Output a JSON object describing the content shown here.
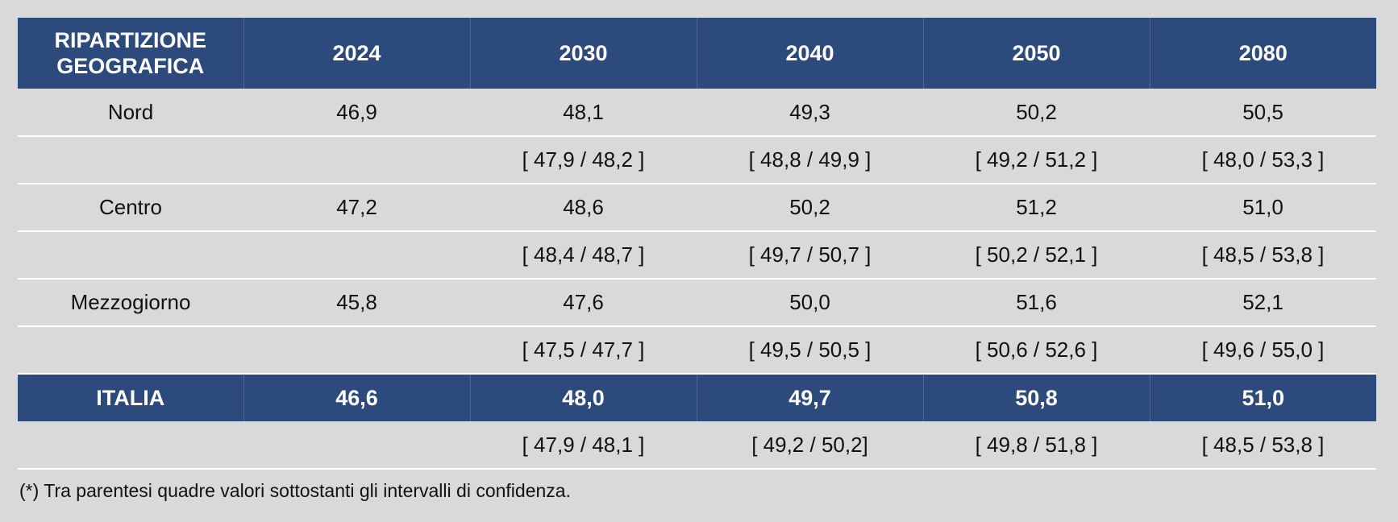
{
  "table": {
    "header": {
      "region_label": "RIPARTIZIONE GEOGRAFICA",
      "years": [
        "2024",
        "2030",
        "2040",
        "2050",
        "2080"
      ]
    },
    "regions": [
      {
        "name": "Nord",
        "values": [
          "46,9",
          "48,1",
          "49,3",
          "50,2",
          "50,5"
        ],
        "ci": [
          "",
          "[ 47,9 / 48,2 ]",
          "[ 48,8 / 49,9 ]",
          "[ 49,2 / 51,2 ]",
          "[ 48,0 / 53,3 ]"
        ]
      },
      {
        "name": "Centro",
        "values": [
          "47,2",
          "48,6",
          "50,2",
          "51,2",
          "51,0"
        ],
        "ci": [
          "",
          "[ 48,4 / 48,7 ]",
          "[ 49,7 / 50,7 ]",
          "[ 50,2 / 52,1 ]",
          "[ 48,5 / 53,8 ]"
        ]
      },
      {
        "name": "Mezzogiorno",
        "values": [
          "45,8",
          "47,6",
          "50,0",
          "51,6",
          "52,1"
        ],
        "ci": [
          "",
          "[ 47,5 / 47,7 ]",
          "[ 49,5 / 50,5 ]",
          "[ 50,6 / 52,6 ]",
          "[ 49,6 / 55,0 ]"
        ]
      }
    ],
    "total": {
      "name": "ITALIA",
      "values": [
        "46,6",
        "48,0",
        "49,7",
        "50,8",
        "51,0"
      ],
      "ci": [
        "",
        "[ 47,9 / 48,1 ]",
        "[ 49,2 / 50,2]",
        "[ 49,8 / 51,8 ]",
        "[ 48,5 / 53,8 ]"
      ]
    },
    "colors": {
      "header_bg": "#2c4a7c",
      "header_text": "#ffffff",
      "page_bg": "#d9d9d9",
      "row_divider": "#ffffff"
    }
  },
  "footnote": "(*) Tra parentesi quadre valori sottostanti gli intervalli di confidenza."
}
